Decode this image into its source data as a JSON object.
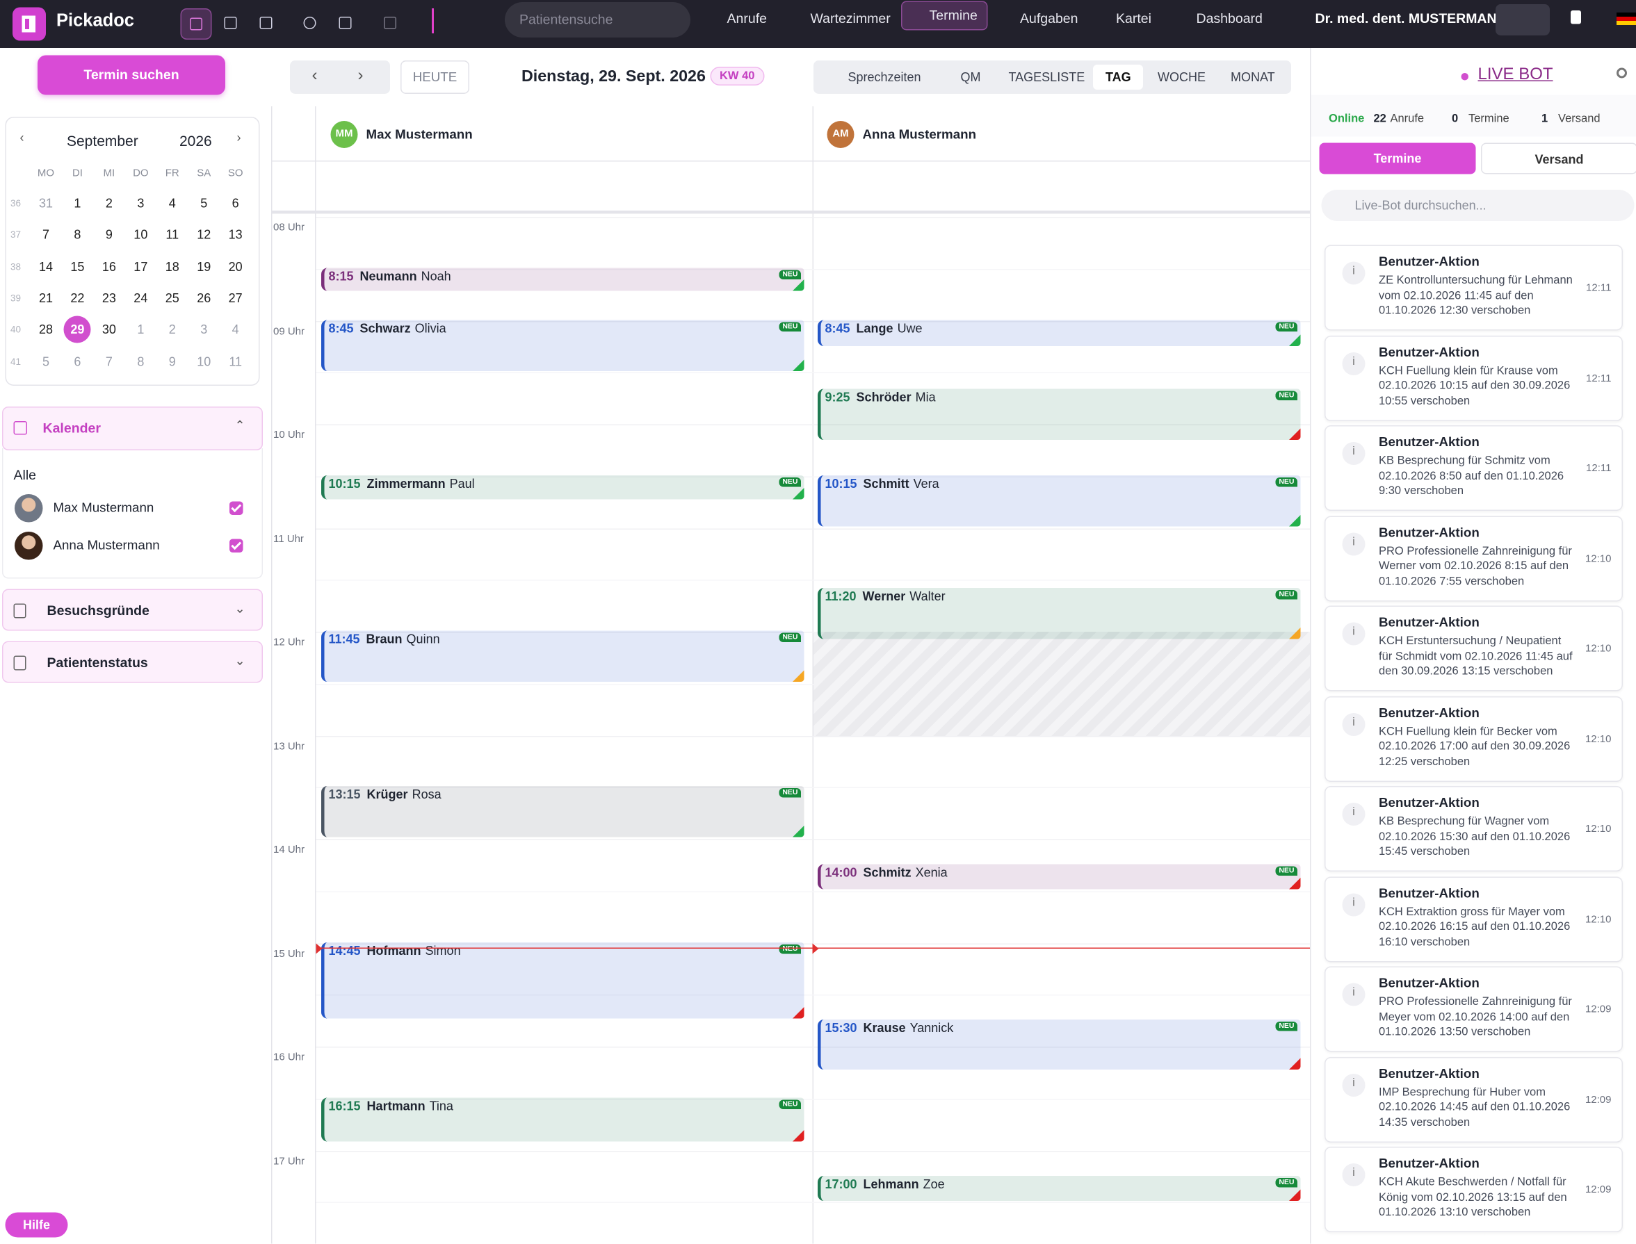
{
  "header": {
    "brand": "Pickadoc",
    "search_placeholder": "Patientensuche",
    "nav": [
      "Anrufe",
      "Wartezimmer",
      "Termine",
      "Aufgaben",
      "Kartei",
      "Dashboard"
    ],
    "user": "Dr. med. dent. MUSTERMANN"
  },
  "sidebar": {
    "search_button": "Termin suchen",
    "calendar": {
      "month": "September",
      "year": "2026",
      "weekdays": [
        "MO",
        "DI",
        "MI",
        "DO",
        "FR",
        "SA",
        "SO"
      ],
      "weeks": [
        {
          "number": "36",
          "days": [
            "31",
            "1",
            "2",
            "3",
            "4",
            "5",
            "6"
          ]
        },
        {
          "number": "37",
          "days": [
            "7",
            "8",
            "9",
            "10",
            "11",
            "12",
            "13"
          ]
        },
        {
          "number": "38",
          "days": [
            "14",
            "15",
            "16",
            "17",
            "18",
            "19",
            "20"
          ]
        },
        {
          "number": "39",
          "days": [
            "21",
            "22",
            "23",
            "24",
            "25",
            "26",
            "27"
          ]
        },
        {
          "number": "40",
          "days": [
            "28",
            "29",
            "30",
            "1",
            "2",
            "3",
            "4"
          ]
        },
        {
          "number": "41",
          "days": [
            "5",
            "6",
            "7",
            "8",
            "9",
            "10",
            "11"
          ]
        }
      ],
      "selected": "29"
    },
    "kalender": {
      "title": "Kalender",
      "all": "Alle",
      "people": [
        "Max Mustermann",
        "Anna Mustermann"
      ]
    },
    "sections": [
      "Besuchsgründe",
      "Patientenstatus"
    ],
    "help": "Hilfe"
  },
  "toolbar": {
    "today": "HEUTE",
    "date": "Dienstag, 29. Sept. 2026",
    "week": "KW 40",
    "views": [
      "Sprechzeiten",
      "QM",
      "TAGESLISTE",
      "TAG",
      "WOCHE",
      "MONAT"
    ]
  },
  "schedule": {
    "hours": [
      "08 Uhr",
      "09 Uhr",
      "10 Uhr",
      "11 Uhr",
      "12 Uhr",
      "13 Uhr",
      "14 Uhr",
      "15 Uhr",
      "16 Uhr",
      "17 Uhr"
    ],
    "columns": [
      {
        "initials": "MM",
        "name": "Max Mustermann",
        "avatar_color": "#6cc04a",
        "appointments": [
          {
            "time": "8:15",
            "last": "Neumann",
            "first": "Noah",
            "badge": "NEU",
            "color": "#7b2f7b",
            "flag": "#22b14c"
          },
          {
            "time": "8:45",
            "last": "Schwarz",
            "first": "Olivia",
            "badge": "NEU",
            "color": "#2456c7",
            "flag": "#22b14c"
          },
          {
            "time": "10:15",
            "last": "Zimmermann",
            "first": "Paul",
            "badge": "NEU",
            "color": "#1f7a52",
            "flag": "#22b14c"
          },
          {
            "time": "11:45",
            "last": "Braun",
            "first": "Quinn",
            "badge": "NEU",
            "color": "#2456c7",
            "flag": "#f5a623"
          },
          {
            "time": "13:15",
            "last": "Krüger",
            "first": "Rosa",
            "badge": "NEU",
            "color": "#4a5563",
            "flag": "#22b14c"
          },
          {
            "time": "14:45",
            "last": "Hofmann",
            "first": "Simon",
            "badge": "NEU",
            "color": "#2456c7",
            "flag": "#e02020"
          },
          {
            "time": "16:15",
            "last": "Hartmann",
            "first": "Tina",
            "badge": "NEU",
            "color": "#1f7a52",
            "flag": "#e02020"
          }
        ]
      },
      {
        "initials": "AM",
        "name": "Anna Mustermann",
        "avatar_color": "#c0733a",
        "appointments": [
          {
            "time": "8:45",
            "last": "Lange",
            "first": "Uwe",
            "badge": "NEU",
            "color": "#2456c7",
            "flag": "#22b14c"
          },
          {
            "time": "9:25",
            "last": "Schröder",
            "first": "Mia",
            "badge": "NEU",
            "color": "#1f7a52",
            "flag": "#e02020"
          },
          {
            "time": "10:15",
            "last": "Schmitt",
            "first": "Vera",
            "badge": "NEU",
            "color": "#2456c7",
            "flag": "#22b14c"
          },
          {
            "time": "11:20",
            "last": "Werner",
            "first": "Walter",
            "badge": "NEU",
            "color": "#1f7a52",
            "flag": "#f5a623"
          },
          {
            "time": "14:00",
            "last": "Schmitz",
            "first": "Xenia",
            "badge": "NEU",
            "color": "#7b2f7b",
            "flag": "#e02020"
          },
          {
            "time": "15:30",
            "last": "Krause",
            "first": "Yannick",
            "badge": "NEU",
            "color": "#2456c7",
            "flag": "#e02020"
          },
          {
            "time": "17:00",
            "last": "Lehmann",
            "first": "Zoe",
            "badge": "NEU",
            "color": "#1f7a52",
            "flag": "#e02020"
          }
        ]
      }
    ]
  },
  "live_bot": {
    "title": "LIVE BOT",
    "status": "Online",
    "stats": [
      {
        "value": "22",
        "label": "Anrufe"
      },
      {
        "value": "0",
        "label": "Termine"
      },
      {
        "value": "1",
        "label": "Versand"
      }
    ],
    "tabs": [
      "Termine",
      "Versand"
    ],
    "search_placeholder": "Live-Bot durchsuchen...",
    "items": [
      {
        "title": "Benutzer-Aktion",
        "text": "ZE Kontrolluntersuchung für Lehmann vom 02.10.2026 11:45 auf den 01.10.2026 12:30 verschoben",
        "time": "12:11"
      },
      {
        "title": "Benutzer-Aktion",
        "text": "KCH Fuellung klein für Krause vom 02.10.2026 10:15 auf den 30.09.2026 10:55 verschoben",
        "time": "12:11"
      },
      {
        "title": "Benutzer-Aktion",
        "text": "KB Besprechung für Schmitz vom 02.10.2026 8:50 auf den 01.10.2026 9:30 verschoben",
        "time": "12:11"
      },
      {
        "title": "Benutzer-Aktion",
        "text": "PRO Professionelle Zahnreinigung für Werner vom 02.10.2026 8:15 auf den 01.10.2026 7:55 verschoben",
        "time": "12:10"
      },
      {
        "title": "Benutzer-Aktion",
        "text": "KCH Erstuntersuchung / Neupatient für Schmidt vom 02.10.2026 11:45 auf den 30.09.2026 13:15 verschoben",
        "time": "12:10"
      },
      {
        "title": "Benutzer-Aktion",
        "text": "KCH Fuellung klein für Becker vom 02.10.2026 17:00 auf den 30.09.2026 12:25 verschoben",
        "time": "12:10"
      },
      {
        "title": "Benutzer-Aktion",
        "text": "KB Besprechung für Wagner vom 02.10.2026 15:30 auf den 01.10.2026 15:45 verschoben",
        "time": "12:10"
      },
      {
        "title": "Benutzer-Aktion",
        "text": "KCH Extraktion gross für Mayer vom 02.10.2026 16:15 auf den 01.10.2026 16:10 verschoben",
        "time": "12:10"
      },
      {
        "title": "Benutzer-Aktion",
        "text": "PRO Professionelle Zahnreinigung für Meyer vom 02.10.2026 14:00 auf den 01.10.2026 13:50 verschoben",
        "time": "12:09"
      },
      {
        "title": "Benutzer-Aktion",
        "text": "IMP Besprechung für Huber vom 02.10.2026 14:45 auf den 01.10.2026 14:35 verschoben",
        "time": "12:09"
      },
      {
        "title": "Benutzer-Aktion",
        "text": "KCH Akute Beschwerden / Notfall für König vom 02.10.2026 13:15 auf den 01.10.2026 13:10 verschoben",
        "time": "12:09"
      }
    ]
  }
}
